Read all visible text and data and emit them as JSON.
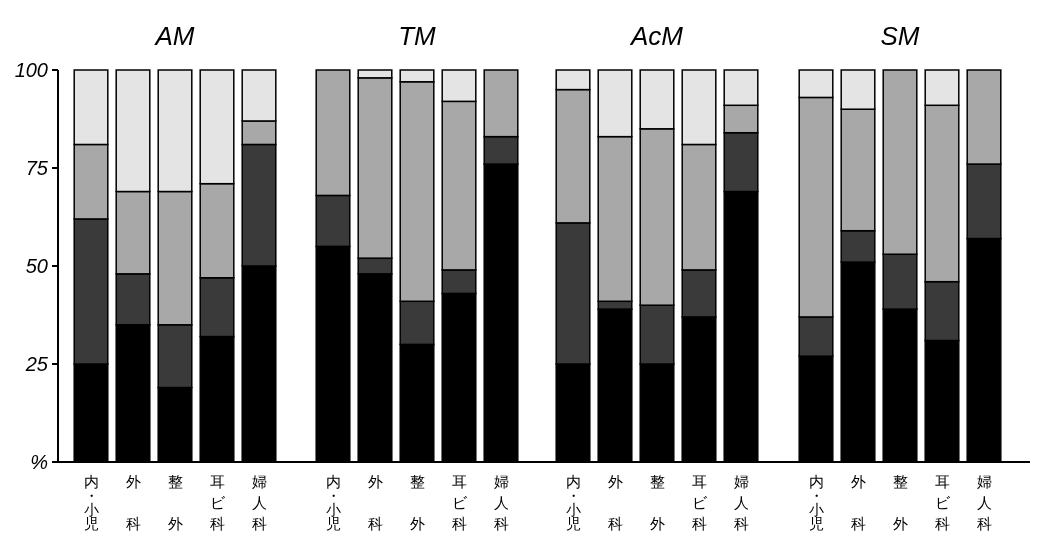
{
  "chart_data": [
    {
      "type": "bar",
      "title": "AM",
      "stacked": true,
      "categories": [
        "内・小児",
        "外科",
        "整外",
        "耳ビ科",
        "婦人科"
      ],
      "ylim": [
        0,
        100
      ],
      "yticks": [
        {
          "value": 0,
          "label": "%"
        },
        25,
        50,
        75,
        100
      ],
      "series": [
        {
          "color": "#000000",
          "values": [
            25,
            35,
            19,
            32,
            50
          ]
        },
        {
          "color": "#3a3a3a",
          "values": [
            37,
            13,
            16,
            15,
            31
          ]
        },
        {
          "color": "#a8a8a8",
          "values": [
            19,
            21,
            34,
            24,
            6
          ]
        },
        {
          "color": "#e4e4e4",
          "values": [
            19,
            31,
            31,
            29,
            13
          ]
        }
      ]
    },
    {
      "type": "bar",
      "title": "TM",
      "stacked": true,
      "tick_labels": "x",
      "categories": [
        "内・小児",
        "外科",
        "整外",
        "耳ビ科",
        "婦人科"
      ],
      "ylim": [
        0,
        100
      ],
      "series": [
        {
          "color": "#000000",
          "values": [
            55,
            48,
            30,
            43,
            76
          ]
        },
        {
          "color": "#3a3a3a",
          "values": [
            13,
            4,
            11,
            6,
            7
          ]
        },
        {
          "color": "#a8a8a8",
          "values": [
            32,
            46,
            56,
            43,
            17
          ]
        },
        {
          "color": "#e4e4e4",
          "values": [
            0,
            2,
            3,
            8,
            0
          ]
        }
      ]
    },
    {
      "type": "bar",
      "title": "AcM",
      "stacked": true,
      "tick_labels": "x",
      "categories": [
        "内・小児",
        "外科",
        "整外",
        "耳ビ科",
        "婦人科"
      ],
      "ylim": [
        0,
        100
      ],
      "series": [
        {
          "color": "#000000",
          "values": [
            25,
            39,
            25,
            37,
            69
          ]
        },
        {
          "color": "#3a3a3a",
          "values": [
            36,
            2,
            15,
            12,
            15
          ]
        },
        {
          "color": "#a8a8a8",
          "values": [
            34,
            42,
            45,
            32,
            7
          ]
        },
        {
          "color": "#e4e4e4",
          "values": [
            5,
            17,
            15,
            19,
            9
          ]
        }
      ]
    },
    {
      "type": "bar",
      "title": "SM",
      "stacked": true,
      "tick_labels": "x",
      "categories": [
        "内・小児",
        "外科",
        "整外",
        "耳ビ科",
        "婦人科"
      ],
      "ylim": [
        0,
        100
      ],
      "series": [
        {
          "color": "#000000",
          "values": [
            27,
            51,
            39,
            31,
            57
          ]
        },
        {
          "color": "#3a3a3a",
          "values": [
            10,
            8,
            14,
            15,
            19
          ]
        },
        {
          "color": "#a8a8a8",
          "values": [
            56,
            31,
            47,
            45,
            24
          ]
        },
        {
          "color": "#e4e4e4",
          "values": [
            7,
            10,
            0,
            9,
            0
          ]
        }
      ]
    }
  ]
}
